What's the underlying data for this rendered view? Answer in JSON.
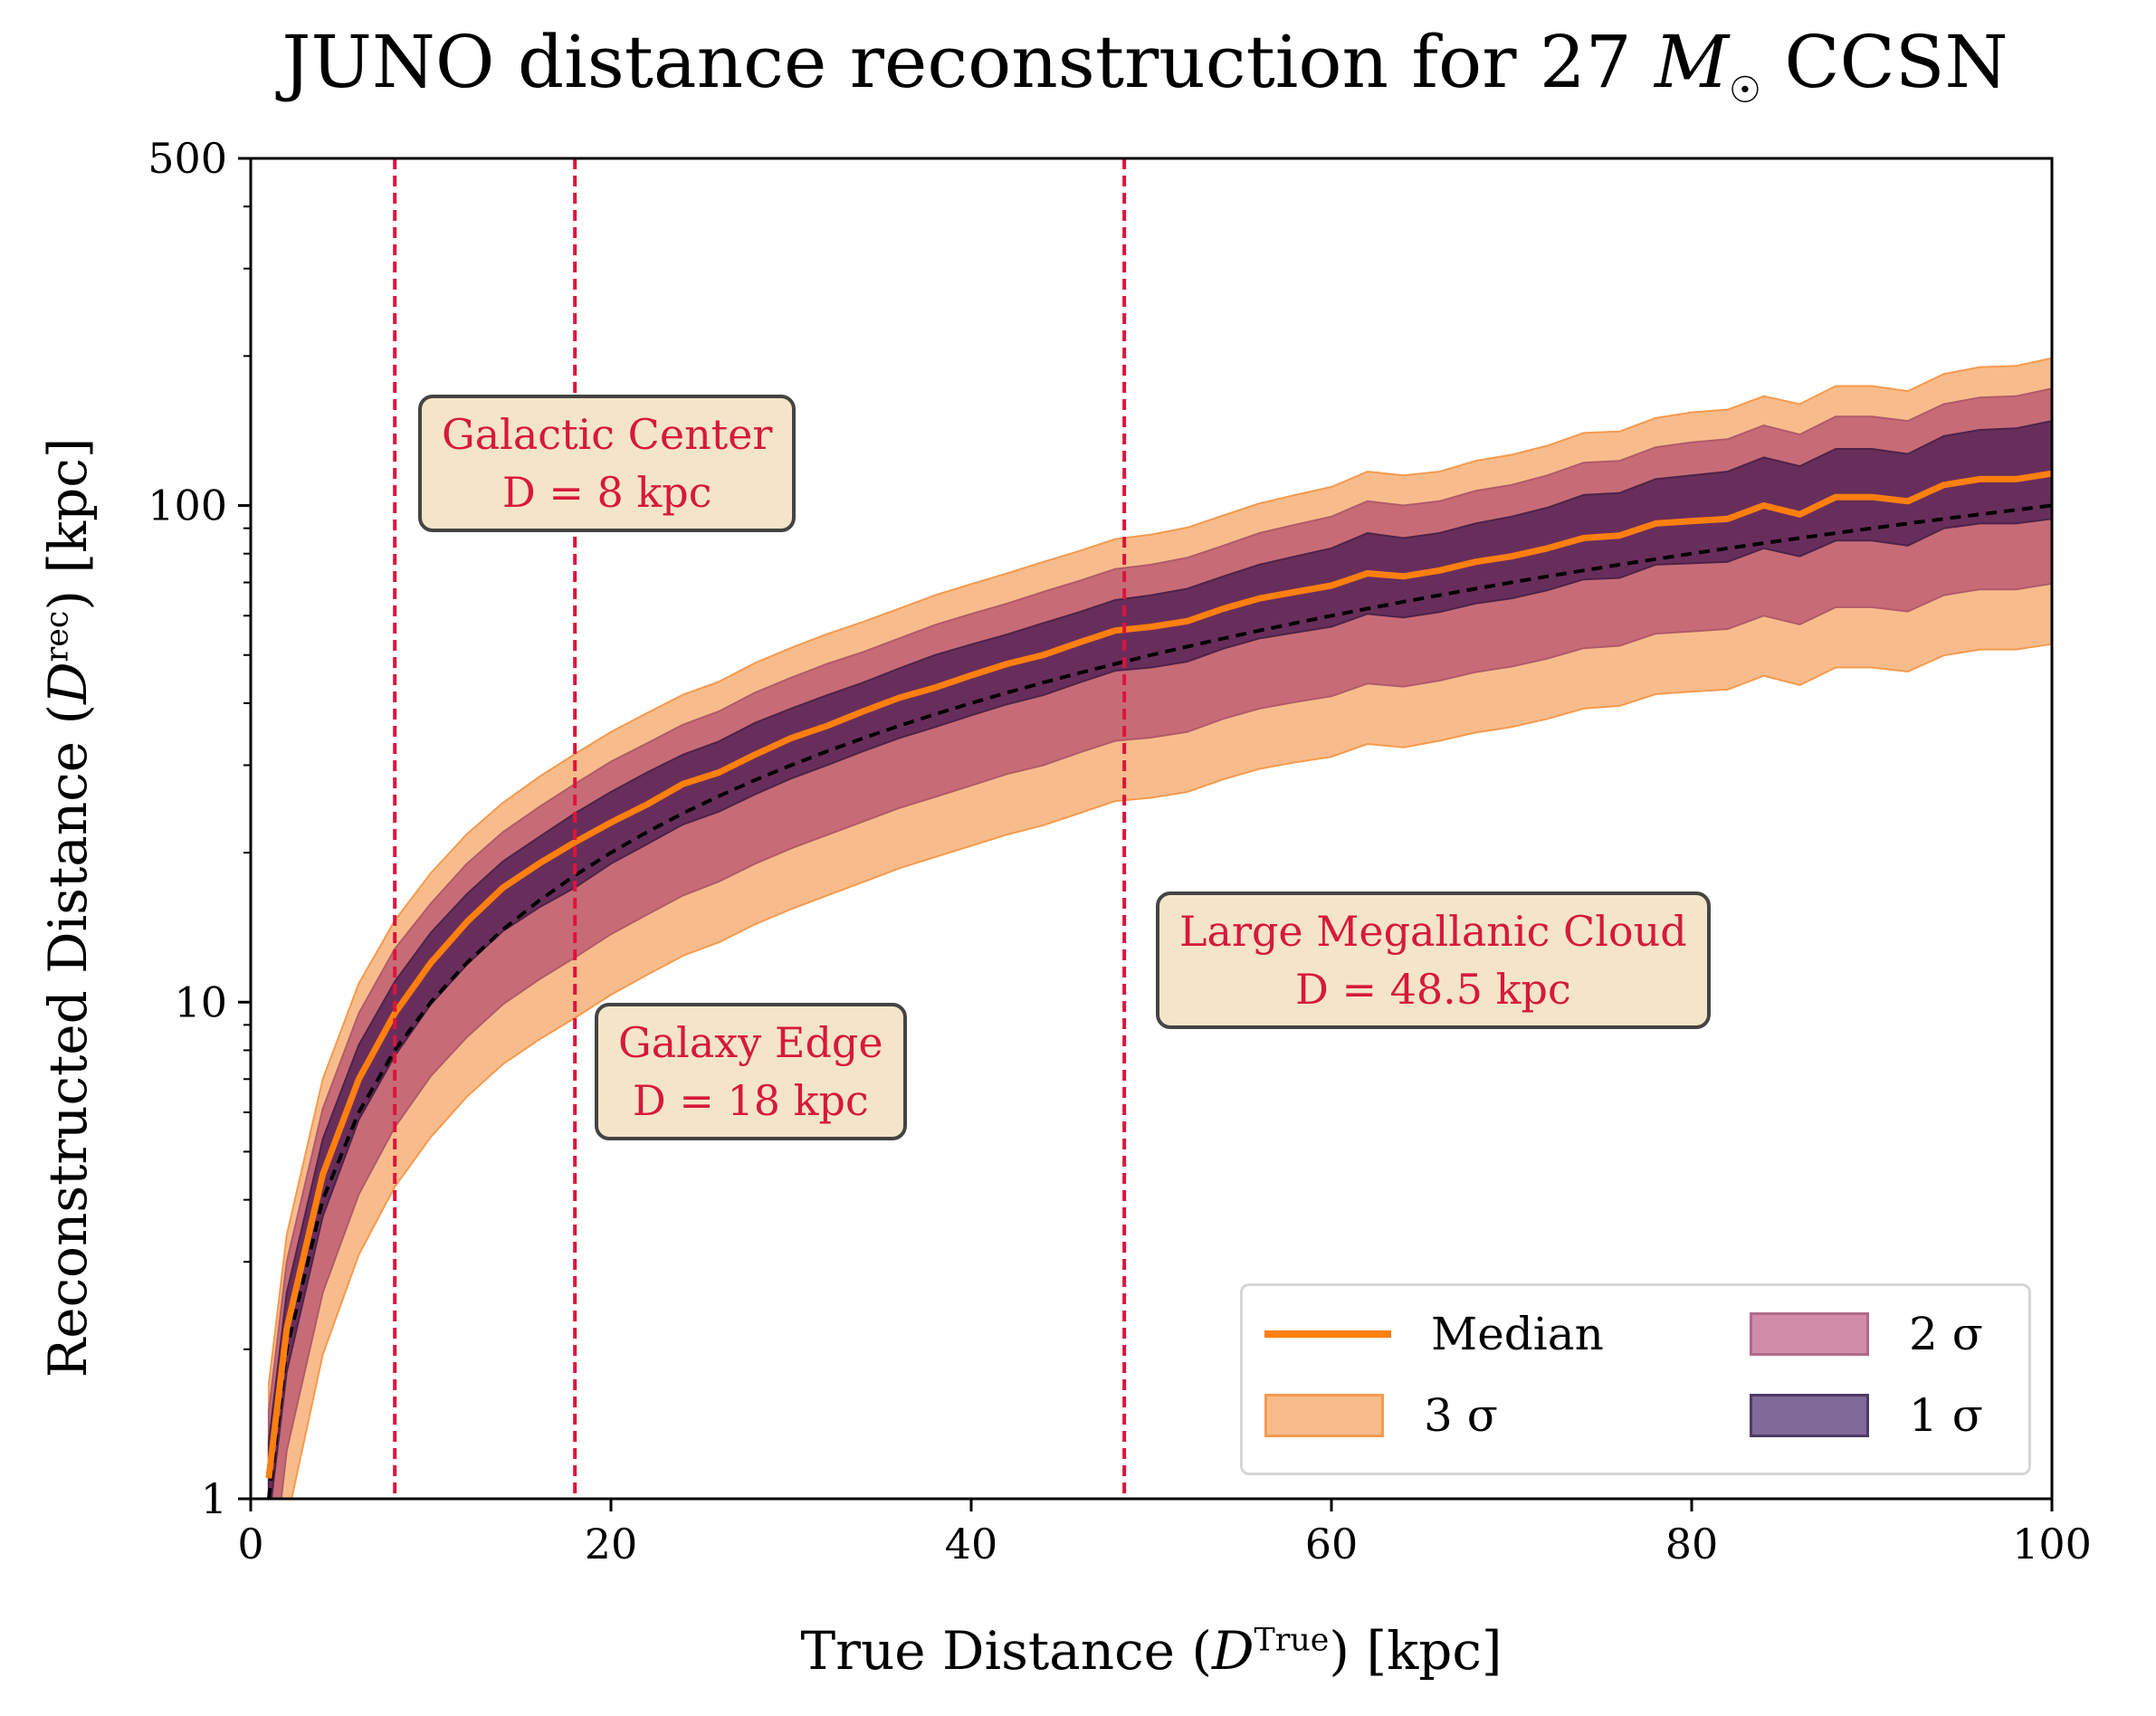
{
  "title": "JUNO distance reconstruction for 27",
  "title_msun": "M",
  "title_suffix": "CCSN",
  "chart_data": {
    "type": "line",
    "title": "JUNO distance reconstruction for 27 M☉ CCSN",
    "xlabel_prefix": "True Distance (",
    "xlabel_sup": "True",
    "xlabel_suffix": ") [kpc]",
    "ylabel_prefix": "Reconstructed Distance (",
    "ylabel_sup": "rec",
    "ylabel_suffix": ") [kpc]",
    "xlim": [
      0,
      100
    ],
    "ylim": [
      1,
      500
    ],
    "yscale": "log",
    "x_ticks": [
      "0",
      "20",
      "40",
      "60",
      "80",
      "100"
    ],
    "y_ticks": [
      "1",
      "10",
      "100",
      "500"
    ],
    "grid": false,
    "x": [
      1,
      2,
      4,
      6,
      8,
      10,
      12,
      14,
      16,
      18,
      20,
      22,
      24,
      26,
      28,
      30,
      32,
      34,
      36,
      38,
      40,
      42,
      44,
      46,
      48,
      50,
      52,
      54,
      56,
      58,
      60,
      62,
      64,
      66,
      68,
      70,
      72,
      74,
      76,
      78,
      80,
      82,
      84,
      86,
      88,
      90,
      92,
      94,
      96,
      98,
      100
    ],
    "series": [
      {
        "name": "Median",
        "values": [
          1.1,
          2.2,
          4.5,
          7,
          9.5,
          12,
          14.5,
          17,
          19,
          21,
          23,
          25,
          27.5,
          29,
          31.5,
          34,
          36,
          38.5,
          41,
          43,
          45.5,
          48,
          50,
          53,
          56,
          57,
          58.5,
          62,
          65,
          67,
          69,
          73,
          72,
          74,
          77,
          79,
          82,
          86,
          87,
          92,
          93,
          94,
          100,
          96,
          104,
          104,
          102,
          110,
          113,
          113,
          116
        ]
      },
      {
        "name": "1 σ upper",
        "values": [
          1.3,
          2.6,
          5.3,
          8.2,
          11,
          13.8,
          16.5,
          19.2,
          21.5,
          24,
          26.5,
          29,
          31.5,
          33.5,
          36.5,
          39,
          41.5,
          44,
          47,
          50,
          52.5,
          55,
          58,
          61,
          64.5,
          66,
          68,
          72,
          76,
          79,
          82,
          88,
          86,
          88,
          92,
          95,
          99,
          105,
          106,
          113,
          115,
          117,
          125,
          120,
          130,
          130,
          127,
          138,
          142,
          143,
          148
        ]
      },
      {
        "name": "1 σ lower",
        "values": [
          0.9,
          1.8,
          3.7,
          5.8,
          7.8,
          9.9,
          11.9,
          13.9,
          15.5,
          17,
          19,
          20.8,
          22.8,
          24.2,
          26.2,
          28.2,
          30,
          32,
          34,
          35.8,
          37.8,
          39.8,
          41.5,
          44,
          46.5,
          47.2,
          48.5,
          51.5,
          54,
          55.5,
          57,
          60.5,
          59.5,
          61,
          63.5,
          65,
          67.5,
          71,
          71.5,
          76,
          76.5,
          77,
          82,
          79,
          85,
          85,
          83,
          90,
          92,
          92,
          94
        ]
      },
      {
        "name": "2 σ upper",
        "values": [
          1.5,
          3,
          6.1,
          9.5,
          12.8,
          15.8,
          19,
          22,
          24.7,
          27.5,
          30.5,
          33.2,
          36.2,
          38.5,
          42,
          45,
          48,
          50.7,
          54,
          57.5,
          60.5,
          63.5,
          67,
          70.5,
          74.5,
          76,
          78.5,
          83,
          88,
          91.5,
          95,
          102,
          100,
          102,
          107,
          110,
          115,
          122,
          123,
          131,
          134,
          136,
          145,
          139,
          151,
          151,
          148,
          160,
          165,
          166,
          172
        ]
      },
      {
        "name": "2 σ lower",
        "values": [
          0.6,
          1.25,
          2.6,
          4.1,
          5.6,
          7.1,
          8.5,
          9.9,
          11.1,
          12.3,
          13.7,
          15,
          16.4,
          17.5,
          19,
          20.4,
          21.7,
          23.1,
          24.6,
          25.9,
          27.3,
          28.8,
          30,
          31.8,
          33.6,
          34.1,
          35,
          37.2,
          39,
          40.2,
          41.3,
          43.8,
          43.2,
          44.4,
          46.2,
          47.4,
          49.2,
          51.6,
          52.2,
          55.2,
          55.8,
          56.4,
          60,
          57.6,
          62.4,
          62.4,
          61.2,
          66,
          67.8,
          67.8,
          69.6
        ]
      },
      {
        "name": "3 σ upper",
        "values": [
          1.7,
          3.4,
          7,
          10.9,
          14.6,
          18.2,
          21.8,
          25.2,
          28.4,
          31.6,
          35,
          38.2,
          41.6,
          44.2,
          48.2,
          51.7,
          55.1,
          58.3,
          62,
          66,
          69.5,
          73,
          77,
          81,
          85.6,
          87.4,
          90.3,
          95.5,
          101,
          105,
          109,
          117,
          115,
          117,
          123,
          126.5,
          132,
          140,
          141,
          150,
          154,
          156,
          166,
          160,
          174,
          174,
          170,
          184,
          190,
          191,
          198
        ]
      },
      {
        "name": "3 σ lower",
        "values": [
          0.45,
          0.9,
          1.95,
          3.1,
          4.25,
          5.35,
          6.45,
          7.5,
          8.4,
          9.3,
          10.35,
          11.35,
          12.4,
          13.2,
          14.35,
          15.4,
          16.4,
          17.45,
          18.6,
          19.6,
          20.65,
          21.75,
          22.7,
          24,
          25.4,
          25.8,
          26.5,
          28.1,
          29.5,
          30.4,
          31.2,
          33.1,
          32.6,
          33.6,
          34.9,
          35.8,
          37.2,
          39,
          39.5,
          41.7,
          42.2,
          42.6,
          45.4,
          43.5,
          47.2,
          47.2,
          46.3,
          49.9,
          51.3,
          51.3,
          52.6
        ]
      },
      {
        "name": "True",
        "values": [
          1,
          2,
          4,
          6,
          8,
          10,
          12,
          14,
          16,
          18,
          20,
          22,
          24,
          26,
          28,
          30,
          32,
          34,
          36,
          38,
          40,
          42,
          44,
          46,
          48,
          50,
          52,
          54,
          56,
          58,
          60,
          62,
          64,
          66,
          68,
          70,
          72,
          74,
          76,
          78,
          80,
          82,
          84,
          86,
          88,
          90,
          92,
          94,
          96,
          98,
          100
        ]
      }
    ],
    "vlines": [
      8,
      18,
      48.5
    ],
    "annotations": [
      {
        "line1": "Galactic Center",
        "line2": "D = 8 kpc"
      },
      {
        "line1": "Galaxy Edge",
        "line2": "D = 18 kpc"
      },
      {
        "line1": "Large Megallanic Cloud",
        "line2": "D = 48.5 kpc"
      }
    ],
    "legend": {
      "placement": "lower-right",
      "entries": [
        "Median",
        "2 σ",
        "3 σ",
        "1 σ"
      ]
    },
    "colors": {
      "median": "#ff7f0e",
      "sigma3": "#f8bc8c",
      "sigma3_edge": "#f59a4e",
      "sigma2": "#c76c77",
      "sigma1": "#682e5b",
      "vline": "#dc143c",
      "true_line": "#000000",
      "annotation_bg": "#f5e5c8",
      "annotation_text": "#dc143c"
    }
  }
}
